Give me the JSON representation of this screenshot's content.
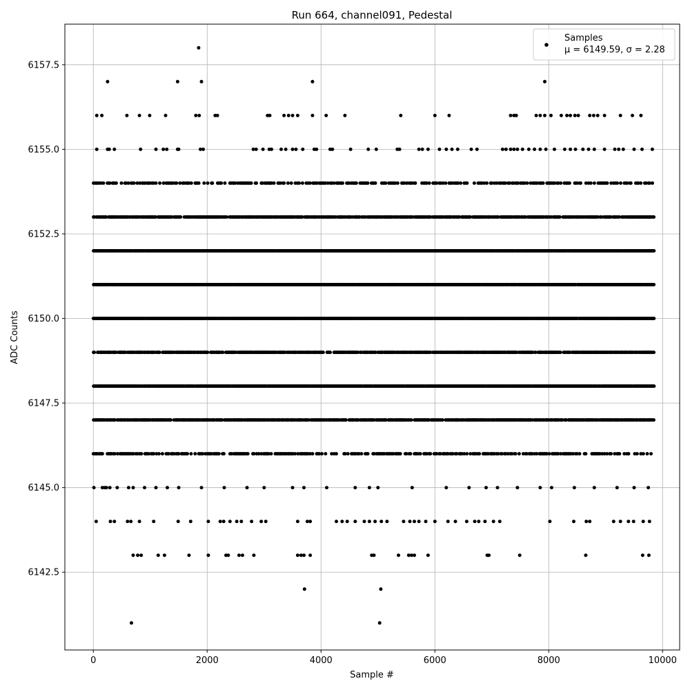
{
  "chart_data": {
    "type": "scatter",
    "title": "Run 664, channel091, Pedestal",
    "xlabel": "Sample #",
    "ylabel": "ADC Counts",
    "xlim": [
      -500,
      10300
    ],
    "ylim": [
      6140.2,
      6158.7
    ],
    "xticks": [
      0,
      2000,
      4000,
      6000,
      8000,
      10000
    ],
    "yticks": [
      6142.5,
      6145.0,
      6147.5,
      6150.0,
      6152.5,
      6155.0,
      6157.5
    ],
    "xtick_labels": [
      "0",
      "2000",
      "4000",
      "6000",
      "8000",
      "10000"
    ],
    "ytick_labels": [
      "6142.5",
      "6145.0",
      "6147.5",
      "6150.0",
      "6152.5",
      "6155.0",
      "6157.5"
    ],
    "grid": true,
    "legend_position": "top-right",
    "marker_color": "#000000",
    "series": [
      {
        "name": "Samples",
        "legend_text": "Samples",
        "legend_stats": "μ = 6149.59, σ = 2.28",
        "x_range": [
          0,
          9850
        ],
        "levels": [
          {
            "y": 6148,
            "x": [
              0,
              9850
            ],
            "density": "continuous"
          },
          {
            "y": 6150,
            "x": [
              0,
              9850
            ],
            "density": "continuous"
          },
          {
            "y": 6151,
            "x": [
              0,
              9850
            ],
            "density": "continuous"
          },
          {
            "y": 6152,
            "x": [
              0,
              9850
            ],
            "density": "continuous"
          },
          {
            "y": 6149,
            "x": [
              0,
              9850
            ],
            "density": "dense"
          },
          {
            "y": 6147,
            "x": [
              0,
              9850
            ],
            "density": "dense"
          },
          {
            "y": 6153,
            "x": [
              0,
              9850
            ],
            "density": "dense"
          },
          {
            "y": 6146,
            "x": [
              0,
              9850
            ],
            "density": "medium"
          },
          {
            "y": 6154,
            "x": [
              0,
              9850
            ],
            "density": "medium"
          },
          {
            "y": 6145,
            "x": [
              0,
              9850
            ],
            "density": "sparse"
          }
        ],
        "points": [
          {
            "x": 10,
            "y": 6145
          },
          {
            "x": 160,
            "y": 6145
          },
          {
            "x": 200,
            "y": 6145
          },
          {
            "x": 230,
            "y": 6145
          },
          {
            "x": 290,
            "y": 6145
          },
          {
            "x": 420,
            "y": 6145
          },
          {
            "x": 620,
            "y": 6145
          },
          {
            "x": 700,
            "y": 6145
          },
          {
            "x": 900,
            "y": 6145
          },
          {
            "x": 1100,
            "y": 6145
          },
          {
            "x": 1300,
            "y": 6145
          },
          {
            "x": 1500,
            "y": 6145
          },
          {
            "x": 1900,
            "y": 6145
          },
          {
            "x": 2300,
            "y": 6145
          },
          {
            "x": 2700,
            "y": 6145
          },
          {
            "x": 3000,
            "y": 6145
          },
          {
            "x": 3500,
            "y": 6145
          },
          {
            "x": 3700,
            "y": 6145
          },
          {
            "x": 4100,
            "y": 6145
          },
          {
            "x": 4600,
            "y": 6145
          },
          {
            "x": 4850,
            "y": 6145
          },
          {
            "x": 5000,
            "y": 6145
          },
          {
            "x": 5600,
            "y": 6145
          },
          {
            "x": 6200,
            "y": 6145
          },
          {
            "x": 6600,
            "y": 6145
          },
          {
            "x": 6900,
            "y": 6145
          },
          {
            "x": 7100,
            "y": 6145
          },
          {
            "x": 7450,
            "y": 6145
          },
          {
            "x": 7850,
            "y": 6145
          },
          {
            "x": 8050,
            "y": 6145
          },
          {
            "x": 8450,
            "y": 6145
          },
          {
            "x": 8800,
            "y": 6145
          },
          {
            "x": 9200,
            "y": 6145
          },
          {
            "x": 9500,
            "y": 6145
          },
          {
            "x": 9750,
            "y": 6145
          },
          {
            "x": 50,
            "y": 6144
          },
          {
            "x": 300,
            "y": 6144
          },
          {
            "x": 370,
            "y": 6144
          },
          {
            "x": 600,
            "y": 6144
          },
          {
            "x": 660,
            "y": 6144
          },
          {
            "x": 810,
            "y": 6144
          },
          {
            "x": 1060,
            "y": 6144
          },
          {
            "x": 1490,
            "y": 6144
          },
          {
            "x": 1710,
            "y": 6144
          },
          {
            "x": 2020,
            "y": 6144
          },
          {
            "x": 2230,
            "y": 6144
          },
          {
            "x": 2290,
            "y": 6144
          },
          {
            "x": 2400,
            "y": 6144
          },
          {
            "x": 2520,
            "y": 6144
          },
          {
            "x": 2600,
            "y": 6144
          },
          {
            "x": 2780,
            "y": 6144
          },
          {
            "x": 2950,
            "y": 6144
          },
          {
            "x": 3030,
            "y": 6144
          },
          {
            "x": 3590,
            "y": 6144
          },
          {
            "x": 3760,
            "y": 6144
          },
          {
            "x": 3810,
            "y": 6144
          },
          {
            "x": 4270,
            "y": 6144
          },
          {
            "x": 4370,
            "y": 6144
          },
          {
            "x": 4460,
            "y": 6144
          },
          {
            "x": 4600,
            "y": 6144
          },
          {
            "x": 4760,
            "y": 6144
          },
          {
            "x": 4850,
            "y": 6144
          },
          {
            "x": 4950,
            "y": 6144
          },
          {
            "x": 5060,
            "y": 6144
          },
          {
            "x": 5160,
            "y": 6144
          },
          {
            "x": 5450,
            "y": 6144
          },
          {
            "x": 5560,
            "y": 6144
          },
          {
            "x": 5640,
            "y": 6144
          },
          {
            "x": 5720,
            "y": 6144
          },
          {
            "x": 5840,
            "y": 6144
          },
          {
            "x": 6000,
            "y": 6144
          },
          {
            "x": 6230,
            "y": 6144
          },
          {
            "x": 6360,
            "y": 6144
          },
          {
            "x": 6560,
            "y": 6144
          },
          {
            "x": 6700,
            "y": 6144
          },
          {
            "x": 6770,
            "y": 6144
          },
          {
            "x": 6880,
            "y": 6144
          },
          {
            "x": 7030,
            "y": 6144
          },
          {
            "x": 7140,
            "y": 6144
          },
          {
            "x": 8020,
            "y": 6144
          },
          {
            "x": 8440,
            "y": 6144
          },
          {
            "x": 8660,
            "y": 6144
          },
          {
            "x": 8720,
            "y": 6144
          },
          {
            "x": 9140,
            "y": 6144
          },
          {
            "x": 9260,
            "y": 6144
          },
          {
            "x": 9400,
            "y": 6144
          },
          {
            "x": 9490,
            "y": 6144
          },
          {
            "x": 9660,
            "y": 6144
          },
          {
            "x": 9770,
            "y": 6144
          },
          {
            "x": 700,
            "y": 6143
          },
          {
            "x": 780,
            "y": 6143
          },
          {
            "x": 840,
            "y": 6143
          },
          {
            "x": 1140,
            "y": 6143
          },
          {
            "x": 1250,
            "y": 6143
          },
          {
            "x": 1680,
            "y": 6143
          },
          {
            "x": 2020,
            "y": 6143
          },
          {
            "x": 2330,
            "y": 6143
          },
          {
            "x": 2370,
            "y": 6143
          },
          {
            "x": 2560,
            "y": 6143
          },
          {
            "x": 2620,
            "y": 6143
          },
          {
            "x": 2820,
            "y": 6143
          },
          {
            "x": 3590,
            "y": 6143
          },
          {
            "x": 3650,
            "y": 6143
          },
          {
            "x": 3700,
            "y": 6143
          },
          {
            "x": 3810,
            "y": 6143
          },
          {
            "x": 4890,
            "y": 6143
          },
          {
            "x": 4930,
            "y": 6143
          },
          {
            "x": 5360,
            "y": 6143
          },
          {
            "x": 5540,
            "y": 6143
          },
          {
            "x": 5590,
            "y": 6143
          },
          {
            "x": 5640,
            "y": 6143
          },
          {
            "x": 5880,
            "y": 6143
          },
          {
            "x": 6920,
            "y": 6143
          },
          {
            "x": 6950,
            "y": 6143
          },
          {
            "x": 7490,
            "y": 6143
          },
          {
            "x": 8650,
            "y": 6143
          },
          {
            "x": 9650,
            "y": 6143
          },
          {
            "x": 9760,
            "y": 6143
          },
          {
            "x": 3710,
            "y": 6142
          },
          {
            "x": 5050,
            "y": 6142
          },
          {
            "x": 670,
            "y": 6141
          },
          {
            "x": 5030,
            "y": 6141
          },
          {
            "x": 60,
            "y": 6156
          },
          {
            "x": 150,
            "y": 6156
          },
          {
            "x": 590,
            "y": 6156
          },
          {
            "x": 810,
            "y": 6156
          },
          {
            "x": 990,
            "y": 6156
          },
          {
            "x": 1270,
            "y": 6156
          },
          {
            "x": 1800,
            "y": 6156
          },
          {
            "x": 1860,
            "y": 6156
          },
          {
            "x": 2140,
            "y": 6156
          },
          {
            "x": 2180,
            "y": 6156
          },
          {
            "x": 3060,
            "y": 6156
          },
          {
            "x": 3100,
            "y": 6156
          },
          {
            "x": 3350,
            "y": 6156
          },
          {
            "x": 3430,
            "y": 6156
          },
          {
            "x": 3500,
            "y": 6156
          },
          {
            "x": 3590,
            "y": 6156
          },
          {
            "x": 3850,
            "y": 6156
          },
          {
            "x": 4090,
            "y": 6156
          },
          {
            "x": 4420,
            "y": 6156
          },
          {
            "x": 5400,
            "y": 6156
          },
          {
            "x": 6000,
            "y": 6156
          },
          {
            "x": 6250,
            "y": 6156
          },
          {
            "x": 7330,
            "y": 6156
          },
          {
            "x": 7390,
            "y": 6156
          },
          {
            "x": 7430,
            "y": 6156
          },
          {
            "x": 7780,
            "y": 6156
          },
          {
            "x": 7850,
            "y": 6156
          },
          {
            "x": 7930,
            "y": 6156
          },
          {
            "x": 8040,
            "y": 6156
          },
          {
            "x": 8220,
            "y": 6156
          },
          {
            "x": 8320,
            "y": 6156
          },
          {
            "x": 8380,
            "y": 6156
          },
          {
            "x": 8460,
            "y": 6156
          },
          {
            "x": 8520,
            "y": 6156
          },
          {
            "x": 8720,
            "y": 6156
          },
          {
            "x": 8790,
            "y": 6156
          },
          {
            "x": 8860,
            "y": 6156
          },
          {
            "x": 8980,
            "y": 6156
          },
          {
            "x": 9260,
            "y": 6156
          },
          {
            "x": 9470,
            "y": 6156
          },
          {
            "x": 9620,
            "y": 6156
          },
          {
            "x": 60,
            "y": 6155
          },
          {
            "x": 250,
            "y": 6155
          },
          {
            "x": 280,
            "y": 6155
          },
          {
            "x": 370,
            "y": 6155
          },
          {
            "x": 830,
            "y": 6155
          },
          {
            "x": 1100,
            "y": 6155
          },
          {
            "x": 1230,
            "y": 6155
          },
          {
            "x": 1290,
            "y": 6155
          },
          {
            "x": 1480,
            "y": 6155
          },
          {
            "x": 1500,
            "y": 6155
          },
          {
            "x": 1880,
            "y": 6155
          },
          {
            "x": 1930,
            "y": 6155
          },
          {
            "x": 2810,
            "y": 6155
          },
          {
            "x": 2860,
            "y": 6155
          },
          {
            "x": 2980,
            "y": 6155
          },
          {
            "x": 3090,
            "y": 6155
          },
          {
            "x": 3130,
            "y": 6155
          },
          {
            "x": 3300,
            "y": 6155
          },
          {
            "x": 3380,
            "y": 6155
          },
          {
            "x": 3500,
            "y": 6155
          },
          {
            "x": 3560,
            "y": 6155
          },
          {
            "x": 3680,
            "y": 6155
          },
          {
            "x": 3880,
            "y": 6155
          },
          {
            "x": 3920,
            "y": 6155
          },
          {
            "x": 4160,
            "y": 6155
          },
          {
            "x": 4200,
            "y": 6155
          },
          {
            "x": 4520,
            "y": 6155
          },
          {
            "x": 4830,
            "y": 6155
          },
          {
            "x": 4970,
            "y": 6155
          },
          {
            "x": 5340,
            "y": 6155
          },
          {
            "x": 5380,
            "y": 6155
          },
          {
            "x": 5720,
            "y": 6155
          },
          {
            "x": 5780,
            "y": 6155
          },
          {
            "x": 5880,
            "y": 6155
          },
          {
            "x": 6080,
            "y": 6155
          },
          {
            "x": 6200,
            "y": 6155
          },
          {
            "x": 6300,
            "y": 6155
          },
          {
            "x": 6400,
            "y": 6155
          },
          {
            "x": 6640,
            "y": 6155
          },
          {
            "x": 6740,
            "y": 6155
          },
          {
            "x": 7190,
            "y": 6155
          },
          {
            "x": 7250,
            "y": 6155
          },
          {
            "x": 7330,
            "y": 6155
          },
          {
            "x": 7390,
            "y": 6155
          },
          {
            "x": 7450,
            "y": 6155
          },
          {
            "x": 7540,
            "y": 6155
          },
          {
            "x": 7650,
            "y": 6155
          },
          {
            "x": 7750,
            "y": 6155
          },
          {
            "x": 7850,
            "y": 6155
          },
          {
            "x": 7950,
            "y": 6155
          },
          {
            "x": 8100,
            "y": 6155
          },
          {
            "x": 8280,
            "y": 6155
          },
          {
            "x": 8380,
            "y": 6155
          },
          {
            "x": 8470,
            "y": 6155
          },
          {
            "x": 8600,
            "y": 6155
          },
          {
            "x": 8700,
            "y": 6155
          },
          {
            "x": 8800,
            "y": 6155
          },
          {
            "x": 8980,
            "y": 6155
          },
          {
            "x": 9160,
            "y": 6155
          },
          {
            "x": 9230,
            "y": 6155
          },
          {
            "x": 9310,
            "y": 6155
          },
          {
            "x": 9500,
            "y": 6155
          },
          {
            "x": 9640,
            "y": 6155
          },
          {
            "x": 9820,
            "y": 6155
          },
          {
            "x": 250,
            "y": 6157
          },
          {
            "x": 1480,
            "y": 6157
          },
          {
            "x": 1900,
            "y": 6157
          },
          {
            "x": 3850,
            "y": 6157
          },
          {
            "x": 7930,
            "y": 6157
          },
          {
            "x": 1850,
            "y": 6158
          }
        ]
      }
    ]
  }
}
